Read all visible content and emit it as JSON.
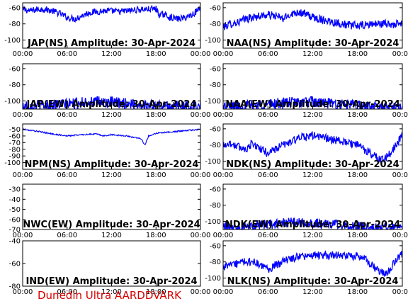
{
  "footer": {
    "text": "Dunedin Ultra AARDDVARK",
    "color": "#d40000"
  },
  "colors": {
    "trace": "#0000ff",
    "axes": "#000000",
    "background": "#ffffff"
  },
  "chart_data": [
    {
      "type": "line",
      "title": "JAP(NS) Amplitude: 30-Apr-2024",
      "x_ticks": [
        "00:00",
        "06:00",
        "12:00",
        "18:00",
        "00:00"
      ],
      "xlim_hours": [
        0,
        24
      ],
      "ylim": [
        -110,
        -54
      ],
      "y_ticks": [
        -60,
        -80,
        -100
      ],
      "series": [
        {
          "x_hours": [
            0,
            1,
            2,
            3,
            4,
            5,
            6,
            7,
            8,
            9,
            10,
            11,
            12,
            13,
            14,
            15,
            16,
            17,
            18,
            18.5,
            19,
            20,
            21,
            22,
            23,
            24
          ],
          "values": [
            -62,
            -64,
            -62,
            -62,
            -64,
            -67,
            -72,
            -74,
            -70,
            -66,
            -65,
            -64,
            -64,
            -65,
            -64,
            -63,
            -62,
            -62,
            -61,
            -70,
            -68,
            -72,
            -74,
            -72,
            -68,
            -60
          ],
          "band": 4
        }
      ]
    },
    {
      "type": "line",
      "title": "NAA(NS) Amplitude: 30-Apr-2024",
      "x_ticks": [
        "00:00",
        "06:00",
        "12:00",
        "18:00",
        "00:00"
      ],
      "xlim_hours": [
        0,
        24
      ],
      "ylim": [
        -110,
        -54
      ],
      "y_ticks": [
        -60,
        -80,
        -100
      ],
      "series": [
        {
          "x_hours": [
            0,
            1,
            2,
            3,
            4,
            5,
            6,
            7,
            8,
            9,
            10,
            11,
            12,
            13,
            14,
            15,
            16,
            17,
            18,
            19,
            20,
            21,
            22,
            23,
            24
          ],
          "values": [
            -84,
            -80,
            -78,
            -74,
            -72,
            -70,
            -69,
            -70,
            -74,
            -68,
            -65,
            -68,
            -72,
            -74,
            -76,
            -78,
            -80,
            -82,
            -82,
            -82,
            -80,
            -80,
            -80,
            -81,
            -80
          ],
          "band": 5
        }
      ]
    },
    {
      "type": "line",
      "title": "JAP(EW) Amplitude: 30-Apr-2024",
      "x_ticks": [
        "00:00",
        "06:00",
        "12:00",
        "18:00",
        "00:00"
      ],
      "xlim_hours": [
        0,
        24
      ],
      "ylim": [
        -110,
        -54
      ],
      "y_ticks": [
        -60,
        -80,
        -100
      ],
      "series": [
        {
          "x_hours": [
            0,
            3,
            6,
            9,
            12,
            15,
            18,
            21,
            24
          ],
          "values": [
            -106,
            -105,
            -104,
            -101,
            -102,
            -104,
            -106,
            -107,
            -107
          ],
          "band": 7
        }
      ]
    },
    {
      "type": "line",
      "title": "NAA(EW) Amplitude: 30-Apr-2024",
      "x_ticks": [
        "00:00",
        "06:00",
        "12:00",
        "18:00",
        "00:00"
      ],
      "xlim_hours": [
        0,
        24
      ],
      "ylim": [
        -110,
        -54
      ],
      "y_ticks": [
        -60,
        -80,
        -100
      ],
      "series": [
        {
          "x_hours": [
            0,
            3,
            6,
            9,
            12,
            15,
            18,
            21,
            24
          ],
          "values": [
            -107,
            -106,
            -104,
            -102,
            -101,
            -104,
            -106,
            -108,
            -108
          ],
          "band": 7
        }
      ]
    },
    {
      "type": "line",
      "title": "NPM(NS) Amplitude: 30-Apr-2024",
      "x_ticks": [
        "00:00",
        "06:00",
        "12:00",
        "18:00",
        "00:00"
      ],
      "xlim_hours": [
        0,
        24
      ],
      "ylim": [
        -110,
        -42
      ],
      "y_ticks": [
        -50,
        -60,
        -70,
        -80,
        -90,
        -100
      ],
      "series": [
        {
          "x_hours": [
            0,
            2,
            4,
            6,
            8,
            10,
            11,
            12,
            14,
            16,
            16.5,
            17,
            18,
            20,
            22,
            24
          ],
          "values": [
            -50,
            -53,
            -57,
            -60,
            -58,
            -57,
            -60,
            -58,
            -60,
            -64,
            -74,
            -60,
            -56,
            -54,
            -52,
            -50
          ],
          "band": 1
        }
      ]
    },
    {
      "type": "line",
      "title": "NDK(NS) Amplitude: 30-Apr-2024",
      "x_ticks": [
        "00:00",
        "06:00",
        "12:00",
        "18:00",
        "00:00"
      ],
      "xlim_hours": [
        0,
        24
      ],
      "ylim": [
        -110,
        -54
      ],
      "y_ticks": [
        -60,
        -80,
        -100
      ],
      "series": [
        {
          "x_hours": [
            0,
            1,
            2,
            3,
            4,
            5,
            6,
            7,
            8,
            9,
            10,
            11,
            12,
            13,
            14,
            15,
            16,
            17,
            18,
            19,
            20,
            21,
            22,
            23,
            24
          ],
          "values": [
            -80,
            -78,
            -82,
            -85,
            -78,
            -85,
            -90,
            -85,
            -80,
            -76,
            -72,
            -70,
            -68,
            -70,
            -72,
            -74,
            -76,
            -78,
            -80,
            -86,
            -92,
            -98,
            -95,
            -82,
            -68
          ],
          "band": 5
        }
      ]
    },
    {
      "type": "line",
      "title": "NWC(EW) Amplitude: 30-Apr-2024",
      "x_ticks": [
        "00:00",
        "06:00",
        "12:00",
        "18:00",
        "00:00"
      ],
      "xlim_hours": [
        0,
        24
      ],
      "ylim": [
        -70,
        -25
      ],
      "y_ticks": [
        -30,
        -40,
        -50,
        -60,
        -70
      ],
      "series": []
    },
    {
      "type": "line",
      "title": "NDK(EW) Amplitude: 30-Apr-2024",
      "x_ticks": [
        "00:00",
        "06:00",
        "12:00",
        "18:00",
        "00:00"
      ],
      "xlim_hours": [
        0,
        24
      ],
      "ylim": [
        -110,
        -54
      ],
      "y_ticks": [
        -60,
        -80,
        -100
      ],
      "series": [
        {
          "x_hours": [
            0,
            3,
            6,
            9,
            12,
            15,
            18,
            21,
            24
          ],
          "values": [
            -107,
            -105,
            -104,
            -101,
            -102,
            -104,
            -106,
            -108,
            -108
          ],
          "band": 6
        }
      ]
    },
    {
      "type": "line",
      "title": "IND(EW) Amplitude: 30-Apr-2024",
      "x_ticks": [
        "00:00",
        "06:00",
        "12:00",
        "18:00",
        "00:00"
      ],
      "xlim_hours": [
        0,
        24
      ],
      "ylim": [
        -80,
        -40
      ],
      "y_ticks": [
        -40,
        -60,
        -80
      ],
      "series": []
    },
    {
      "type": "line",
      "title": "NLK(NS) Amplitude: 30-Apr-2024",
      "x_ticks": [
        "00:00",
        "06:00",
        "12:00",
        "18:00",
        "00:00"
      ],
      "xlim_hours": [
        0,
        24
      ],
      "ylim": [
        -110,
        -54
      ],
      "y_ticks": [
        -60,
        -80,
        -100
      ],
      "series": [
        {
          "x_hours": [
            0,
            1,
            2,
            3,
            4,
            5,
            6,
            7,
            8,
            9,
            10,
            11,
            12,
            14,
            16,
            18,
            19,
            20,
            21,
            22,
            23,
            23.5,
            24
          ],
          "values": [
            -86,
            -84,
            -82,
            -80,
            -80,
            -84,
            -90,
            -84,
            -80,
            -76,
            -74,
            -73,
            -72,
            -72,
            -72,
            -73,
            -76,
            -85,
            -92,
            -95,
            -80,
            -74,
            -70
          ],
          "band": 5
        }
      ]
    }
  ]
}
